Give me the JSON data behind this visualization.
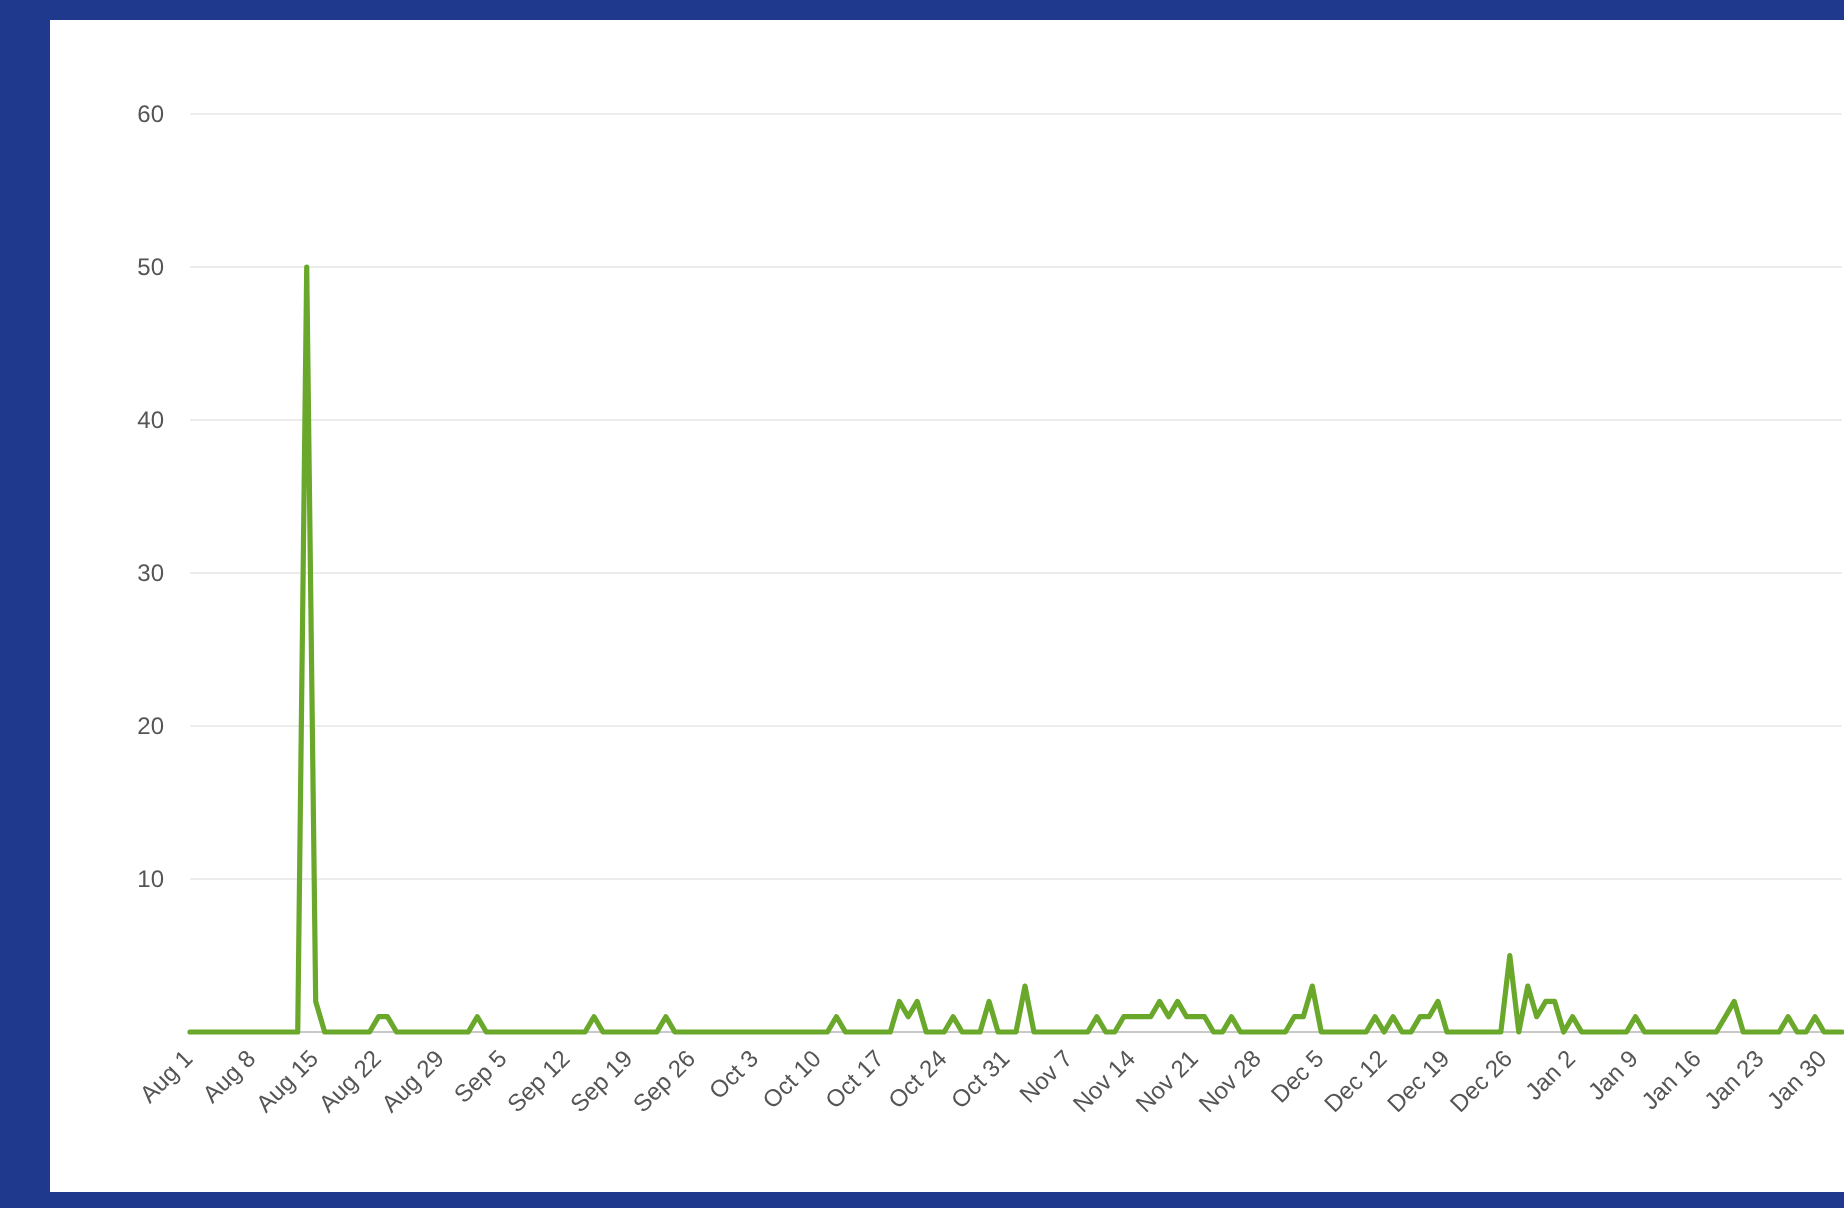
{
  "chart_data": {
    "type": "line",
    "categories": [
      "Aug 1",
      null,
      null,
      null,
      null,
      null,
      null,
      "Aug 8",
      null,
      null,
      null,
      null,
      null,
      null,
      "Aug 15",
      null,
      null,
      null,
      null,
      null,
      null,
      "Aug 22",
      null,
      null,
      null,
      null,
      null,
      null,
      "Aug 29",
      null,
      null,
      null,
      null,
      null,
      null,
      "Sep 5",
      null,
      null,
      null,
      null,
      null,
      null,
      "Sep 12",
      null,
      null,
      null,
      null,
      null,
      null,
      "Sep 19",
      null,
      null,
      null,
      null,
      null,
      null,
      "Sep 26",
      null,
      null,
      null,
      null,
      null,
      null,
      "Oct 3",
      null,
      null,
      null,
      null,
      null,
      null,
      "Oct 10",
      null,
      null,
      null,
      null,
      null,
      null,
      "Oct 17",
      null,
      null,
      null,
      null,
      null,
      null,
      "Oct 24",
      null,
      null,
      null,
      null,
      null,
      null,
      "Oct 31",
      null,
      null,
      null,
      null,
      null,
      null,
      "Nov 7",
      null,
      null,
      null,
      null,
      null,
      null,
      "Nov 14",
      null,
      null,
      null,
      null,
      null,
      null,
      "Nov 21",
      null,
      null,
      null,
      null,
      null,
      null,
      "Nov 28",
      null,
      null,
      null,
      null,
      null,
      null,
      "Dec 5",
      null,
      null,
      null,
      null,
      null,
      null,
      "Dec 12",
      null,
      null,
      null,
      null,
      null,
      null,
      "Dec 19",
      null,
      null,
      null,
      null,
      null,
      null,
      "Dec 26",
      null,
      null,
      null,
      null,
      null,
      null,
      "Jan 2",
      null,
      null,
      null,
      null,
      null,
      null,
      "Jan 9",
      null,
      null,
      null,
      null,
      null,
      null,
      "Jan 16",
      null,
      null,
      null,
      null,
      null,
      null,
      "Jan 23",
      null,
      null,
      null,
      null,
      null,
      null,
      "Jan 30",
      null,
      null
    ],
    "series": [
      {
        "color": "#6aa82c",
        "values": [
          0,
          0,
          0,
          0,
          0,
          0,
          0,
          0,
          0,
          0,
          0,
          0,
          0,
          50,
          2,
          0,
          0,
          0,
          0,
          0,
          0,
          1,
          1,
          0,
          0,
          0,
          0,
          0,
          0,
          0,
          0,
          0,
          1,
          0,
          0,
          0,
          0,
          0,
          0,
          0,
          0,
          0,
          0,
          0,
          0,
          1,
          0,
          0,
          0,
          0,
          0,
          0,
          0,
          1,
          0,
          0,
          0,
          0,
          0,
          0,
          0,
          0,
          0,
          0,
          0,
          0,
          0,
          0,
          0,
          0,
          0,
          0,
          1,
          0,
          0,
          0,
          0,
          0,
          0,
          2,
          1,
          2,
          0,
          0,
          0,
          1,
          0,
          0,
          0,
          2,
          0,
          0,
          0,
          3,
          0,
          0,
          0,
          0,
          0,
          0,
          0,
          1,
          0,
          0,
          1,
          1,
          1,
          1,
          2,
          1,
          2,
          1,
          1,
          1,
          0,
          0,
          1,
          0,
          0,
          0,
          0,
          0,
          0,
          1,
          1,
          3,
          0,
          0,
          0,
          0,
          0,
          0,
          1,
          0,
          1,
          0,
          0,
          1,
          1,
          2,
          0,
          0,
          0,
          0,
          0,
          0,
          0,
          5,
          0,
          3,
          1,
          2,
          2,
          0,
          1,
          0,
          0,
          0,
          0,
          0,
          0,
          1,
          0,
          0,
          0,
          0,
          0,
          0,
          0,
          0,
          0,
          1,
          2,
          0,
          0,
          0,
          0,
          0,
          1,
          0,
          0,
          1,
          0,
          0,
          0
        ]
      }
    ],
    "ylim": [
      0,
      60
    ],
    "yticks": [
      10,
      20,
      30,
      40,
      50,
      60
    ],
    "grid": "y",
    "marker": "none",
    "line_style": "solid",
    "legend": false
  }
}
